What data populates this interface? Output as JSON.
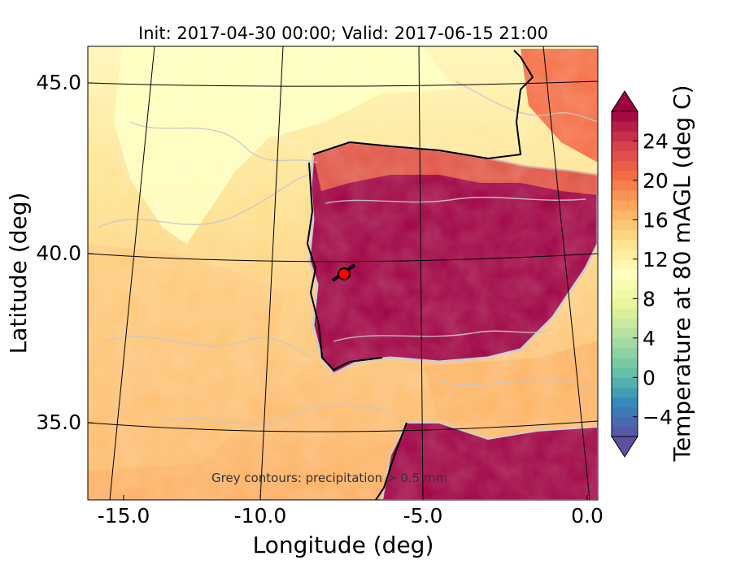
{
  "figure": {
    "title": "Init: 2017-04-30 00:00; Valid: 2017-06-15 21:00",
    "xlabel": "Longitude (deg)",
    "ylabel": "Latitude (deg)",
    "annotation": "Grey contours: precipitation > 0.5 mm",
    "x_ticks": [
      "-15.0",
      "-10.0",
      "-5.0",
      "0.0"
    ],
    "y_ticks": [
      "45.0",
      "40.0",
      "35.0"
    ]
  },
  "colorbar": {
    "label": "Temperature at 80 mAGL (deg C)",
    "ticks": [
      "24",
      "20",
      "16",
      "12",
      "8",
      "4",
      "0",
      "−4"
    ],
    "colormap": "Spectral_r",
    "extend": "both",
    "range": [
      -6,
      27
    ]
  },
  "map": {
    "extent_lon": [
      -16,
      0.2
    ],
    "extent_lat": [
      32.8,
      46.1
    ],
    "marker": {
      "lon": -7.6,
      "lat": 39.4,
      "color": "#ff0000"
    },
    "colors": {
      "hot": "#9e0142",
      "warm": "#f47d4a",
      "mild": "#fdb465",
      "cool": "#fee08b",
      "cold": "#ffffbf",
      "precip_contour": "#c8c8c8",
      "coastline": "#000000",
      "graticule": "#000000"
    }
  }
}
